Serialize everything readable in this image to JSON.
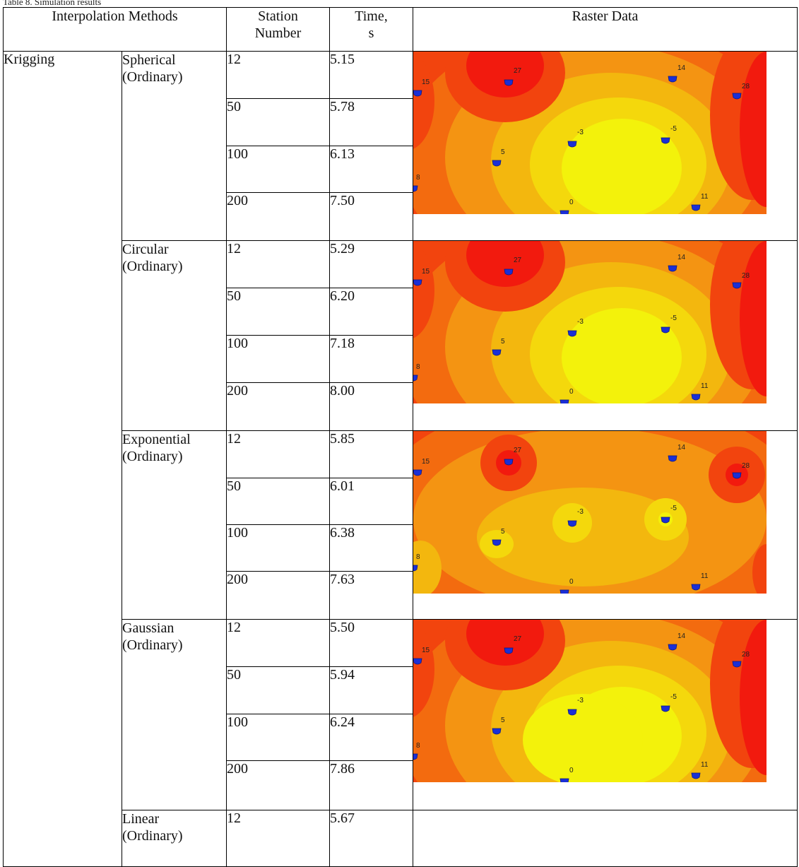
{
  "caption": "Table 8. Simulation results",
  "headers": {
    "interpolation_methods": "Interpolation Methods",
    "station_number_l1": "Station",
    "station_number_l2": "Number",
    "time_l1": "Time,",
    "time_l2": "s",
    "raster_data": "Raster Data"
  },
  "method": "Krigging",
  "groups": [
    {
      "variant_l1": "Spherical",
      "variant_l2": "(Ordinary)",
      "rows": [
        {
          "station": "12",
          "time": "5.15"
        },
        {
          "station": "50",
          "time": "5.78"
        },
        {
          "station": "100",
          "time": "6.13"
        },
        {
          "station": "200",
          "time": "7.50"
        }
      ]
    },
    {
      "variant_l1": "Circular",
      "variant_l2": "(Ordinary)",
      "rows": [
        {
          "station": "12",
          "time": "5.29"
        },
        {
          "station": "50",
          "time": "6.20"
        },
        {
          "station": "100",
          "time": "7.18"
        },
        {
          "station": "200",
          "time": "8.00"
        }
      ]
    },
    {
      "variant_l1": "Exponential",
      "variant_l2": "(Ordinary)",
      "rows": [
        {
          "station": "12",
          "time": "5.85"
        },
        {
          "station": "50",
          "time": "6.01"
        },
        {
          "station": "100",
          "time": "6.38"
        },
        {
          "station": "200",
          "time": "7.63"
        }
      ]
    },
    {
      "variant_l1": "Gaussian",
      "variant_l2": "(Ordinary)",
      "rows": [
        {
          "station": "12",
          "time": "5.50"
        },
        {
          "station": "50",
          "time": "5.94"
        },
        {
          "station": "100",
          "time": "6.24"
        },
        {
          "station": "200",
          "time": "7.86"
        }
      ]
    },
    {
      "variant_l1": "Linear",
      "variant_l2": "(Ordinary)",
      "rows": [
        {
          "station": "12",
          "time": "5.67"
        }
      ]
    }
  ],
  "station_labels": {
    "s15": "15",
    "s27": "27",
    "s14": "14",
    "s28": "28",
    "s3": "-3",
    "s5": "5",
    "s5b": "-5",
    "s8": "8",
    "s0": "0",
    "s11": "11"
  },
  "colors": {
    "red": "#f21a0e",
    "red_orange": "#f2440e",
    "orange": "#f36b0f",
    "light_orange": "#f49412",
    "amber": "#f3b70e",
    "yellow_orange": "#f4d80c",
    "yellow": "#f3f20b",
    "marker": "#1b2fd6"
  }
}
